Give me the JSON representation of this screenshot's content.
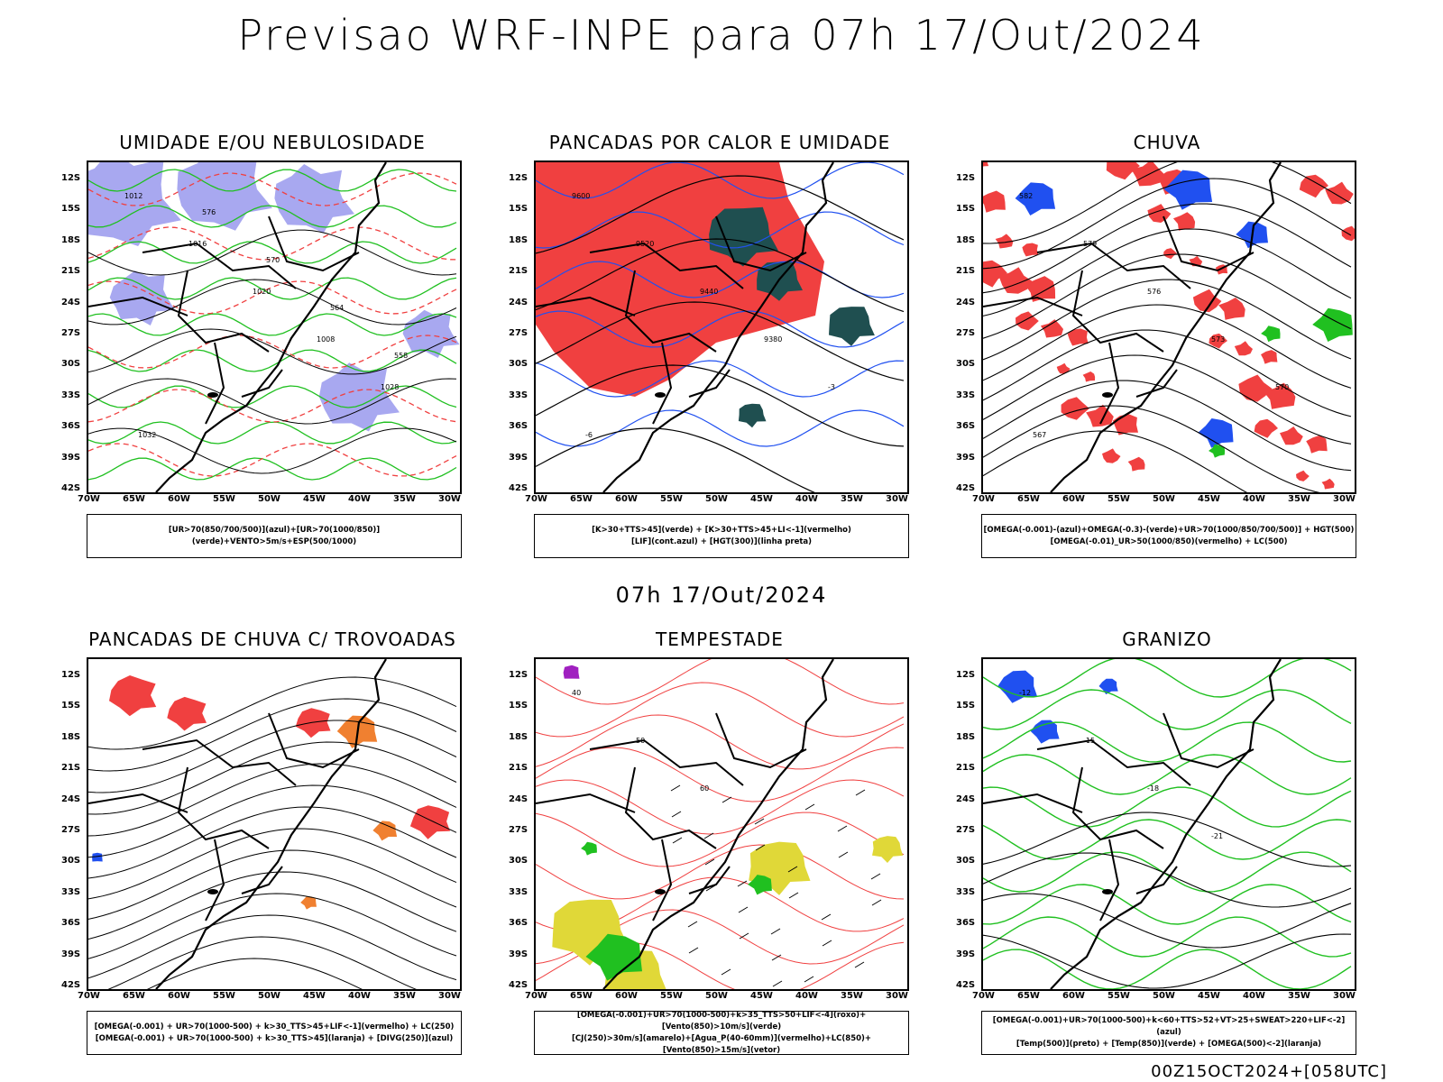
{
  "header": {
    "title": "Previsao WRF-INPE  para 07h 17/Out/2024"
  },
  "mid_title": "07h 17/Out/2024",
  "footer": "00Z15OCT2024+[058UTC]",
  "axes": {
    "lat_labels": [
      "12S",
      "15S",
      "18S",
      "21S",
      "24S",
      "27S",
      "30S",
      "33S",
      "36S",
      "39S",
      "42S"
    ],
    "lon_labels": [
      "70W",
      "65W",
      "60W",
      "55W",
      "50W",
      "45W",
      "40W",
      "35W",
      "30W"
    ]
  },
  "panels": [
    {
      "id": "umidade",
      "title": "UMIDADE E/OU NEBULOSIDADE",
      "legend": [
        "[UR>70(850/700/500)](azul)+[UR>70(1000/850)](verde)+VENTO>5m/s+ESP(500/1000)"
      ],
      "contour_labels": [
        "1012",
        "1016",
        "1020",
        "1008",
        "1028",
        "1032",
        "576",
        "570",
        "564",
        "558"
      ]
    },
    {
      "id": "pancadas-calor",
      "title": "PANCADAS POR CALOR E UMIDADE",
      "legend": [
        "[K>30+TTS>45](verde) + [K>30+TTS>45+LI<-1](vermelho)",
        "[LIF](cont.azul) + [HGT(300)](linha preta)"
      ],
      "contour_labels": [
        "9600",
        "9520",
        "9440",
        "9380",
        "-3",
        "-6"
      ]
    },
    {
      "id": "chuva",
      "title": "CHUVA",
      "legend": [
        "[OMEGA(-0.001)-(azul)+OMEGA(-0.3)-(verde)+UR>70(1000/850/700/500)] + HGT(500)",
        "[OMEGA(-0.01)_UR>50(1000/850)(vermelho) + LC(500)"
      ],
      "contour_labels": [
        "582",
        "579",
        "576",
        "573",
        "570",
        "567"
      ]
    },
    {
      "id": "pancadas-trovoadas",
      "title": "PANCADAS DE CHUVA C/ TROVOADAS",
      "legend": [
        "[OMEGA(-0.001) + UR>70(1000-500) + k>30_TTS>45+LIF<-1](vermelho) + LC(250)",
        "[OMEGA(-0.001) + UR>70(1000-500) + k>30_TTS>45](laranja) + [DIVG(250)](azul)"
      ],
      "contour_labels": []
    },
    {
      "id": "tempestade",
      "title": "TEMPESTADE",
      "legend": [
        "[OMEGA(-0.001)+UR>70(1000-500)+k>35_TTS>50+LIF<-4](roxo)+[Vento(850)>10m/s](verde)",
        "[CJ(250)>30m/s](amarelo)+[Agua_P(40-60mm)](vermelho)+LC(850)+[Vento(850)>15m/s](vetor)"
      ],
      "contour_labels": [
        "40",
        "50",
        "60"
      ]
    },
    {
      "id": "granizo",
      "title": "GRANIZO",
      "legend": [
        "[OMEGA(-0.001)+UR>70(1000-500)+k<60+TTS>52+VT>25+SWEAT>220+LIF<-2](azul)",
        "[Temp(500)](preto) + [Temp(850)](verde) + [OMEGA(500)<-2](laranja)"
      ],
      "contour_labels": [
        "-12",
        "-15",
        "-18",
        "-21"
      ]
    }
  ],
  "colors": {
    "red": "#f04040",
    "blue": "#2050f0",
    "green": "#20c020",
    "lavender": "#a8a8f0",
    "teal": "#1f4f50",
    "orange": "#f08030",
    "yellow": "#e0d838",
    "purple": "#a020c0"
  }
}
